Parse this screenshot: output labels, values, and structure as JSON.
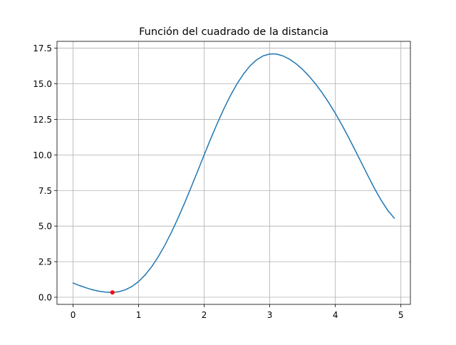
{
  "chart_data": {
    "type": "line",
    "title": "Función del cuadrado de la distancia",
    "xlabel": "",
    "ylabel": "",
    "xlim": [
      -0.245,
      5.145
    ],
    "ylim": [
      -0.5,
      17.98
    ],
    "grid": true,
    "x_ticks": [
      0,
      1,
      2,
      3,
      4,
      5
    ],
    "x_tick_labels": [
      "0",
      "1",
      "2",
      "3",
      "4",
      "5"
    ],
    "y_ticks": [
      0.0,
      2.5,
      5.0,
      7.5,
      10.0,
      12.5,
      15.0,
      17.5
    ],
    "y_tick_labels": [
      "0.0",
      "2.5",
      "5.0",
      "7.5",
      "10.0",
      "12.5",
      "15.0",
      "17.5"
    ],
    "series": [
      {
        "color": "#1f77b4",
        "x": [
          0.0,
          0.1,
          0.2,
          0.3,
          0.4,
          0.5,
          0.6,
          0.7,
          0.8,
          0.9,
          1.0,
          1.1,
          1.2,
          1.3,
          1.4,
          1.5,
          1.6,
          1.7,
          1.8,
          1.9,
          2.0,
          2.1,
          2.2,
          2.3,
          2.4,
          2.5,
          2.6,
          2.7,
          2.8,
          2.9,
          3.0,
          3.1,
          3.2,
          3.3,
          3.4,
          3.5,
          3.6,
          3.7,
          3.8,
          3.9,
          4.0,
          4.1,
          4.2,
          4.3,
          4.4,
          4.5,
          4.6,
          4.7,
          4.8,
          4.9
        ],
        "y": [
          1.0,
          0.82,
          0.66,
          0.52,
          0.42,
          0.36,
          0.34,
          0.39,
          0.53,
          0.76,
          1.11,
          1.57,
          2.15,
          2.85,
          3.66,
          4.56,
          5.55,
          6.61,
          7.72,
          8.86,
          10.01,
          11.14,
          12.22,
          13.24,
          14.17,
          14.99,
          15.69,
          16.26,
          16.68,
          16.96,
          17.09,
          17.09,
          16.96,
          16.73,
          16.41,
          16.01,
          15.53,
          14.98,
          14.36,
          13.67,
          12.92,
          12.11,
          11.25,
          10.35,
          9.43,
          8.51,
          7.62,
          6.81,
          6.1,
          5.55
        ]
      }
    ],
    "highlight_point": {
      "x": 0.6,
      "y": 0.34,
      "color": "#ff0000"
    }
  }
}
